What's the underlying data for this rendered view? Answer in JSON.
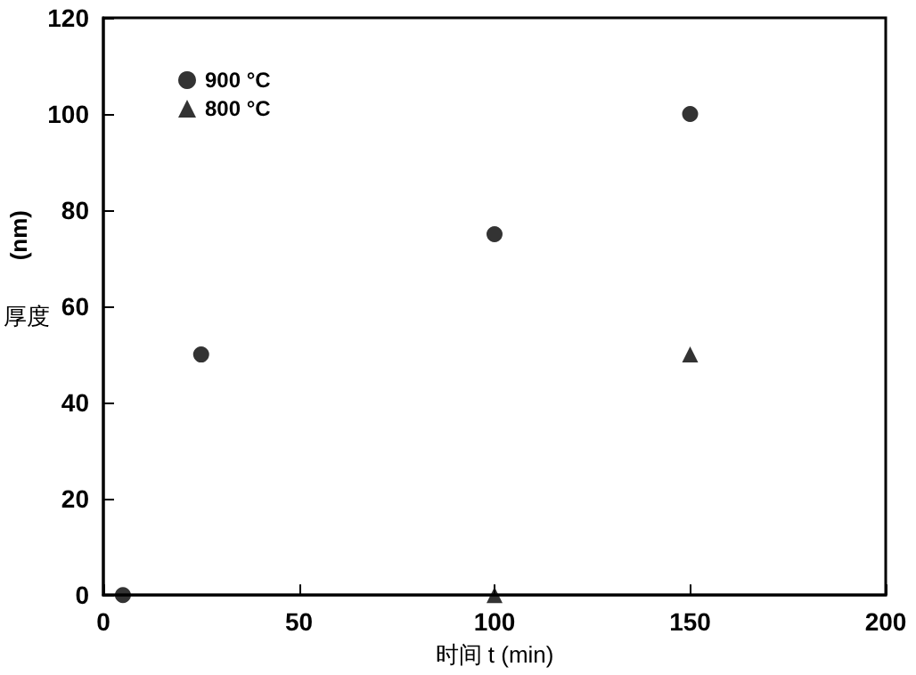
{
  "chart_data": {
    "type": "scatter",
    "xlabel": "时间 t (min)",
    "ylabel": "厚度 (nm)",
    "xlim": [
      0,
      200
    ],
    "xticks": [
      0,
      50,
      100,
      150,
      200
    ],
    "ylim": [
      0,
      120
    ],
    "yticks": [
      0,
      20,
      40,
      60,
      80,
      100,
      120
    ],
    "grid": false,
    "legend": "top left",
    "series": [
      {
        "name": "900 °C",
        "color": "#000000",
        "marker": "circle",
        "x": [
          5,
          25,
          100,
          150
        ],
        "values": [
          0,
          50,
          75,
          100
        ]
      },
      {
        "name": "800 °C",
        "color": "#000000",
        "marker": "triangle",
        "x": [
          100,
          150
        ],
        "values": [
          0,
          50
        ]
      }
    ]
  }
}
